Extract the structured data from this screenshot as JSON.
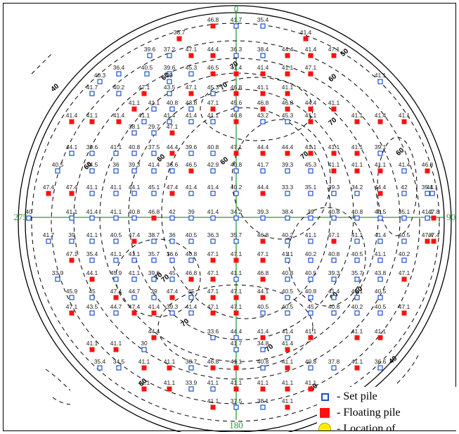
{
  "axis_labels": {
    "north": "0",
    "east": "90",
    "south": "180",
    "west": "275"
  },
  "contour_labels": [
    "40",
    "50",
    "60",
    "70",
    "70",
    "60",
    "60",
    "60",
    "70",
    "60",
    "70",
    "60",
    "70",
    "70",
    "60",
    "60",
    "70",
    "70",
    "60",
    "50",
    "40"
  ],
  "legend": {
    "items": [
      {
        "symbol": "set-pile-icon",
        "label": "- Set pile"
      },
      {
        "symbol": "floating-pile-icon",
        "label": "- Floating pile"
      },
      {
        "symbol": "location-icon",
        "label": "- Location of"
      }
    ]
  },
  "colors": {
    "set_pile": "#1a4fd0",
    "floating_pile": "#ff1010",
    "axis": "#2e9a35",
    "contour": "#000000"
  },
  "piles": [
    {
      "v": "46.8",
      "t": "f"
    },
    {
      "v": "41.7",
      "t": "s"
    },
    {
      "v": "35.4",
      "t": "s"
    },
    {
      "v": "38.7",
      "t": "f"
    },
    {
      "v": "41.4",
      "t": "f"
    },
    {
      "v": "39.6",
      "t": "s"
    },
    {
      "v": "37.2",
      "t": "s"
    },
    {
      "v": "47.1",
      "t": "f"
    },
    {
      "v": "44.4",
      "t": "f"
    },
    {
      "v": "36.3",
      "t": "s"
    },
    {
      "v": "38.4",
      "t": "s"
    },
    {
      "v": "44.4",
      "t": "f"
    },
    {
      "v": "41.4",
      "t": "f"
    },
    {
      "v": "47.1",
      "t": "f"
    },
    {
      "v": "36.4",
      "t": "s"
    },
    {
      "v": "40.5",
      "t": "s"
    },
    {
      "v": "39.6",
      "t": "s"
    },
    {
      "v": "45.3",
      "t": "s"
    },
    {
      "v": "46.5",
      "t": "f"
    },
    {
      "v": "41.4",
      "t": "f"
    },
    {
      "v": "41.4",
      "t": "f"
    },
    {
      "v": "41.1",
      "t": "f"
    },
    {
      "v": "47.1",
      "t": "f"
    },
    {
      "v": "40.3",
      "t": "s"
    },
    {
      "v": "39",
      "t": "s"
    },
    {
      "v": "41.1",
      "t": "s"
    },
    {
      "v": "41.7",
      "t": "s"
    },
    {
      "v": "40.2",
      "t": "s"
    },
    {
      "v": "47.1",
      "t": "f"
    },
    {
      "v": "43.5",
      "t": "s"
    },
    {
      "v": "47.1",
      "t": "f"
    },
    {
      "v": "45.3",
      "t": "s"
    },
    {
      "v": "46.8",
      "t": "f"
    },
    {
      "v": "41.1",
      "t": "f"
    },
    {
      "v": "41.1",
      "t": "f"
    },
    {
      "v": "41.1",
      "t": "f"
    },
    {
      "v": "41.1",
      "t": "s"
    },
    {
      "v": "40.8",
      "t": "s"
    },
    {
      "v": "43.8",
      "t": "s"
    },
    {
      "v": "47.1",
      "t": "f"
    },
    {
      "v": "45.6",
      "t": "s"
    },
    {
      "v": "46.8",
      "t": "f"
    },
    {
      "v": "46.8",
      "t": "f"
    },
    {
      "v": "44.4",
      "t": "f"
    },
    {
      "v": "41.1",
      "t": "f"
    },
    {
      "v": "41.4",
      "t": "f"
    },
    {
      "v": "41.1",
      "t": "f"
    },
    {
      "v": "41.4",
      "t": "f"
    },
    {
      "v": "41.1",
      "t": "s"
    },
    {
      "v": "41.4",
      "t": "s"
    },
    {
      "v": "41.4",
      "t": "s"
    },
    {
      "v": "41.1",
      "t": "s"
    },
    {
      "v": "46.8",
      "t": "f"
    },
    {
      "v": "43.2",
      "t": "s"
    },
    {
      "v": "45.3",
      "t": "s"
    },
    {
      "v": "41.1",
      "t": "f"
    },
    {
      "v": "41.1",
      "t": "f"
    },
    {
      "v": "41.4",
      "t": "f"
    },
    {
      "v": "41.1",
      "t": "f"
    },
    {
      "v": "38.1",
      "t": "s"
    },
    {
      "v": "29.7",
      "t": "s"
    },
    {
      "v": "47.1",
      "t": "f"
    },
    {
      "v": "44.1",
      "t": "s"
    },
    {
      "v": "39.6",
      "t": "s"
    },
    {
      "v": "41.1",
      "t": "s"
    },
    {
      "v": "40.8",
      "t": "s"
    },
    {
      "v": "37.5",
      "t": "s"
    },
    {
      "v": "44.4",
      "t": "f"
    },
    {
      "v": "39.6",
      "t": "s"
    },
    {
      "v": "40.8",
      "t": "s"
    },
    {
      "v": "47.1",
      "t": "f"
    },
    {
      "v": "44.4",
      "t": "f"
    },
    {
      "v": "44.4",
      "t": "f"
    },
    {
      "v": "41.1",
      "t": "f"
    },
    {
      "v": "41.1",
      "t": "f"
    },
    {
      "v": "41.1",
      "t": "f"
    },
    {
      "v": "39.1",
      "t": "s"
    },
    {
      "v": "40.5",
      "t": "s"
    },
    {
      "v": "34.5",
      "t": "s"
    },
    {
      "v": "36",
      "t": "s"
    },
    {
      "v": "39.3",
      "t": "s"
    },
    {
      "v": "41.4",
      "t": "s"
    },
    {
      "v": "36.6",
      "t": "s"
    },
    {
      "v": "46.5",
      "t": "f"
    },
    {
      "v": "42.9",
      "t": "s"
    },
    {
      "v": "40.8",
      "t": "s"
    },
    {
      "v": "41.7",
      "t": "s"
    },
    {
      "v": "39.3",
      "t": "s"
    },
    {
      "v": "45.3",
      "t": "s"
    },
    {
      "v": "41.1",
      "t": "f"
    },
    {
      "v": "41.1",
      "t": "f"
    },
    {
      "v": "41.1",
      "t": "f"
    },
    {
      "v": "41.4",
      "t": "s"
    },
    {
      "v": "46.8",
      "t": "f"
    },
    {
      "v": "47.4",
      "t": "f"
    },
    {
      "v": "47.4",
      "t": "f"
    },
    {
      "v": "41.1",
      "t": "s"
    },
    {
      "v": "41.1",
      "t": "s"
    },
    {
      "v": "44.1",
      "t": "s"
    },
    {
      "v": "45.1",
      "t": "s"
    },
    {
      "v": "47.4",
      "t": "f"
    },
    {
      "v": "41.4",
      "t": "s"
    },
    {
      "v": "41.4",
      "t": "s"
    },
    {
      "v": "40.2",
      "t": "s"
    },
    {
      "v": "44.4",
      "t": "f"
    },
    {
      "v": "33.3",
      "t": "s"
    },
    {
      "v": "35.1",
      "t": "s"
    },
    {
      "v": "39.3",
      "t": "s"
    },
    {
      "v": "34.2",
      "t": "s"
    },
    {
      "v": "44.4",
      "t": "f"
    },
    {
      "v": "42",
      "t": "s"
    },
    {
      "v": "35.4",
      "t": "s"
    },
    {
      "v": "41.1",
      "t": "s"
    },
    {
      "v": "40",
      "t": "s"
    },
    {
      "v": "41.1",
      "t": "s"
    },
    {
      "v": "41.4",
      "t": "s"
    },
    {
      "v": "41.1",
      "t": "s"
    },
    {
      "v": "40.8",
      "t": "s"
    },
    {
      "v": "46.8",
      "t": "f"
    },
    {
      "v": "42",
      "t": "s"
    },
    {
      "v": "39",
      "t": "s"
    },
    {
      "v": "41.4",
      "t": "s"
    },
    {
      "v": "34.2",
      "t": "s"
    },
    {
      "v": "39.3",
      "t": "s"
    },
    {
      "v": "38.4",
      "t": "s"
    },
    {
      "v": "39",
      "t": "s"
    },
    {
      "v": "40.8",
      "t": "s"
    },
    {
      "v": "40.8",
      "t": "s"
    },
    {
      "v": "40.5",
      "t": "s"
    },
    {
      "v": "35.1",
      "t": "s"
    },
    {
      "v": "41.1",
      "t": "s"
    },
    {
      "v": "47.8",
      "t": "f"
    },
    {
      "v": "41.7",
      "t": "s"
    },
    {
      "v": "39",
      "t": "s"
    },
    {
      "v": "41.1",
      "t": "s"
    },
    {
      "v": "40.5",
      "t": "s"
    },
    {
      "v": "47.4",
      "t": "f"
    },
    {
      "v": "38.7",
      "t": "s"
    },
    {
      "v": "36",
      "t": "s"
    },
    {
      "v": "40.5",
      "t": "s"
    },
    {
      "v": "36.3",
      "t": "s"
    },
    {
      "v": "35.7",
      "t": "s"
    },
    {
      "v": "46.8",
      "t": "f"
    },
    {
      "v": "40.2",
      "t": "s"
    },
    {
      "v": "41.1",
      "t": "s"
    },
    {
      "v": "47.1",
      "t": "f"
    },
    {
      "v": "41.1",
      "t": "s"
    },
    {
      "v": "41.4",
      "t": "s"
    },
    {
      "v": "40.5",
      "t": "s"
    },
    {
      "v": "47.4",
      "t": "f"
    },
    {
      "v": "47.4",
      "t": "f"
    },
    {
      "v": "47.1",
      "t": "f"
    },
    {
      "v": "35.4",
      "t": "s"
    },
    {
      "v": "41.1",
      "t": "s"
    },
    {
      "v": "41.1",
      "t": "s"
    },
    {
      "v": "35.7",
      "t": "s"
    },
    {
      "v": "36.6",
      "t": "s"
    },
    {
      "v": "40.8",
      "t": "s"
    },
    {
      "v": "47.1",
      "t": "f"
    },
    {
      "v": "47.1",
      "t": "f"
    },
    {
      "v": "47.1",
      "t": "f"
    },
    {
      "v": "41.1",
      "t": "s"
    },
    {
      "v": "40.2",
      "t": "s"
    },
    {
      "v": "40.8",
      "t": "s"
    },
    {
      "v": "40.5",
      "t": "s"
    },
    {
      "v": "41.1",
      "t": "s"
    },
    {
      "v": "40.2",
      "t": "s"
    },
    {
      "v": "33.9",
      "t": "s"
    },
    {
      "v": "44.1",
      "t": "f"
    },
    {
      "v": "45.9",
      "t": "s"
    },
    {
      "v": "41.1",
      "t": "s"
    },
    {
      "v": "39.6",
      "t": "s"
    },
    {
      "v": "45",
      "t": "s"
    },
    {
      "v": "46.8",
      "t": "f"
    },
    {
      "v": "47.1",
      "t": "f"
    },
    {
      "v": "41.1",
      "t": "s"
    },
    {
      "v": "46.8",
      "t": "f"
    },
    {
      "v": "40.8",
      "t": "s"
    },
    {
      "v": "40.5",
      "t": "s"
    },
    {
      "v": "39.3",
      "t": "s"
    },
    {
      "v": "35.7",
      "t": "s"
    },
    {
      "v": "43.8",
      "t": "s"
    },
    {
      "v": "47.1",
      "t": "f"
    },
    {
      "v": "45.9",
      "t": "s"
    },
    {
      "v": "45",
      "t": "s"
    },
    {
      "v": "47.4",
      "t": "f"
    },
    {
      "v": "44.7",
      "t": "s"
    },
    {
      "v": "39",
      "t": "s"
    },
    {
      "v": "47.4",
      "t": "f"
    },
    {
      "v": "45",
      "t": "s"
    },
    {
      "v": "47.1",
      "t": "f"
    },
    {
      "v": "47.1",
      "t": "f"
    },
    {
      "v": "44.1",
      "t": "f"
    },
    {
      "v": "40.5",
      "t": "s"
    },
    {
      "v": "40.8",
      "t": "s"
    },
    {
      "v": "41.4",
      "t": "s"
    },
    {
      "v": "41.1",
      "t": "s"
    },
    {
      "v": "40.5",
      "t": "s"
    },
    {
      "v": "47.1",
      "t": "f"
    },
    {
      "v": "43.5",
      "t": "s"
    },
    {
      "v": "44.7",
      "t": "s"
    },
    {
      "v": "47.4",
      "t": "f"
    },
    {
      "v": "41.4",
      "t": "f"
    },
    {
      "v": "39.3",
      "t": "s"
    },
    {
      "v": "41.4",
      "t": "s"
    },
    {
      "v": "47.1",
      "t": "f"
    },
    {
      "v": "47.1",
      "t": "f"
    },
    {
      "v": "40.5",
      "t": "s"
    },
    {
      "v": "40.5",
      "t": "s"
    },
    {
      "v": "45",
      "t": "s"
    },
    {
      "v": "40.8",
      "t": "s"
    },
    {
      "v": "40.2",
      "t": "s"
    },
    {
      "v": "40.5",
      "t": "s"
    },
    {
      "v": "47.1",
      "t": "f"
    },
    {
      "v": "44.4",
      "t": "f"
    },
    {
      "v": "33.6",
      "t": "s"
    },
    {
      "v": "44.4",
      "t": "s"
    },
    {
      "v": "41.4",
      "t": "f"
    },
    {
      "v": "41.4",
      "t": "s"
    },
    {
      "v": "41.1",
      "t": "f"
    },
    {
      "v": "41.1",
      "t": "f"
    },
    {
      "v": "41.1",
      "t": "f"
    },
    {
      "v": "41.1",
      "t": "f"
    },
    {
      "v": "41.1",
      "t": "f"
    },
    {
      "v": "30",
      "t": "s"
    },
    {
      "v": "41.7",
      "t": "s"
    },
    {
      "v": "34.8",
      "t": "s"
    },
    {
      "v": "41.4",
      "t": "f"
    },
    {
      "v": "35.4",
      "t": "s"
    },
    {
      "v": "34.5",
      "t": "s"
    },
    {
      "v": "41.1",
      "t": "f"
    },
    {
      "v": "41.1",
      "t": "f"
    },
    {
      "v": "38.7",
      "t": "s"
    },
    {
      "v": "46.8",
      "t": "f"
    },
    {
      "v": "41.1",
      "t": "f"
    },
    {
      "v": "40.8",
      "t": "s"
    },
    {
      "v": "41.1",
      "t": "f"
    },
    {
      "v": "40.8",
      "t": "s"
    },
    {
      "v": "37.8",
      "t": "s"
    },
    {
      "v": "41.1",
      "t": "f"
    },
    {
      "v": "36.6",
      "t": "s"
    },
    {
      "v": "41.1",
      "t": "f"
    },
    {
      "v": "41.1",
      "t": "f"
    },
    {
      "v": "33.9",
      "t": "s"
    },
    {
      "v": "41.1",
      "t": "s"
    },
    {
      "v": "41.1",
      "t": "f"
    },
    {
      "v": "41.1",
      "t": "f"
    },
    {
      "v": "41.1",
      "t": "f"
    },
    {
      "v": "41.1",
      "t": "f"
    },
    {
      "v": "41.1",
      "t": "f"
    },
    {
      "v": "37.5",
      "t": "s"
    },
    {
      "v": "38.1",
      "t": "s"
    },
    {
      "v": "41.1",
      "t": "f"
    },
    {
      "v": "41.1",
      "t": "f"
    },
    {
      "v": "41.1",
      "t": "f"
    },
    {
      "v": "41.1",
      "t": "f"
    },
    {
      "v": "41.1",
      "t": "f"
    }
  ]
}
